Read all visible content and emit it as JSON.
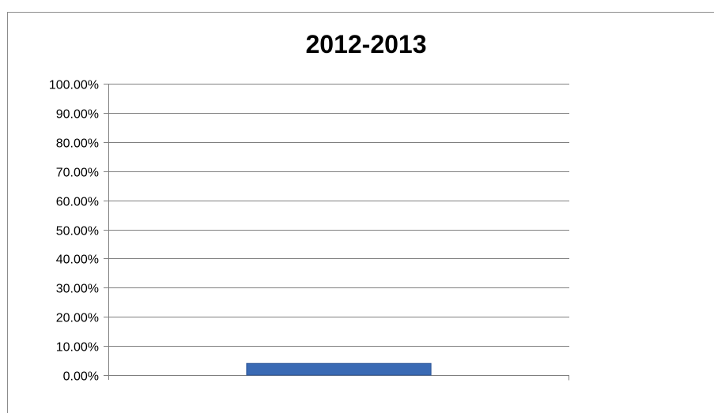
{
  "chart_data": {
    "type": "bar",
    "title": "2012-2013",
    "categories": [
      ""
    ],
    "values": [
      0.04
    ],
    "xlabel": "",
    "ylabel": "",
    "ylim": [
      0,
      1
    ],
    "yticks": [
      0,
      0.1,
      0.2,
      0.3,
      0.4,
      0.5,
      0.6,
      0.7,
      0.8,
      0.9,
      1.0
    ],
    "ytick_labels": [
      "0.00%",
      "10.00%",
      "20.00%",
      "30.00%",
      "40.00%",
      "50.00%",
      "60.00%",
      "70.00%",
      "80.00%",
      "90.00%",
      "100.00%"
    ],
    "grid": true,
    "legend": "none",
    "colors": {
      "bar": "#3a6ab4",
      "bar_dark": "#2d5596",
      "grid": "#7f7f7f",
      "frame": "#8c8c8c"
    }
  }
}
